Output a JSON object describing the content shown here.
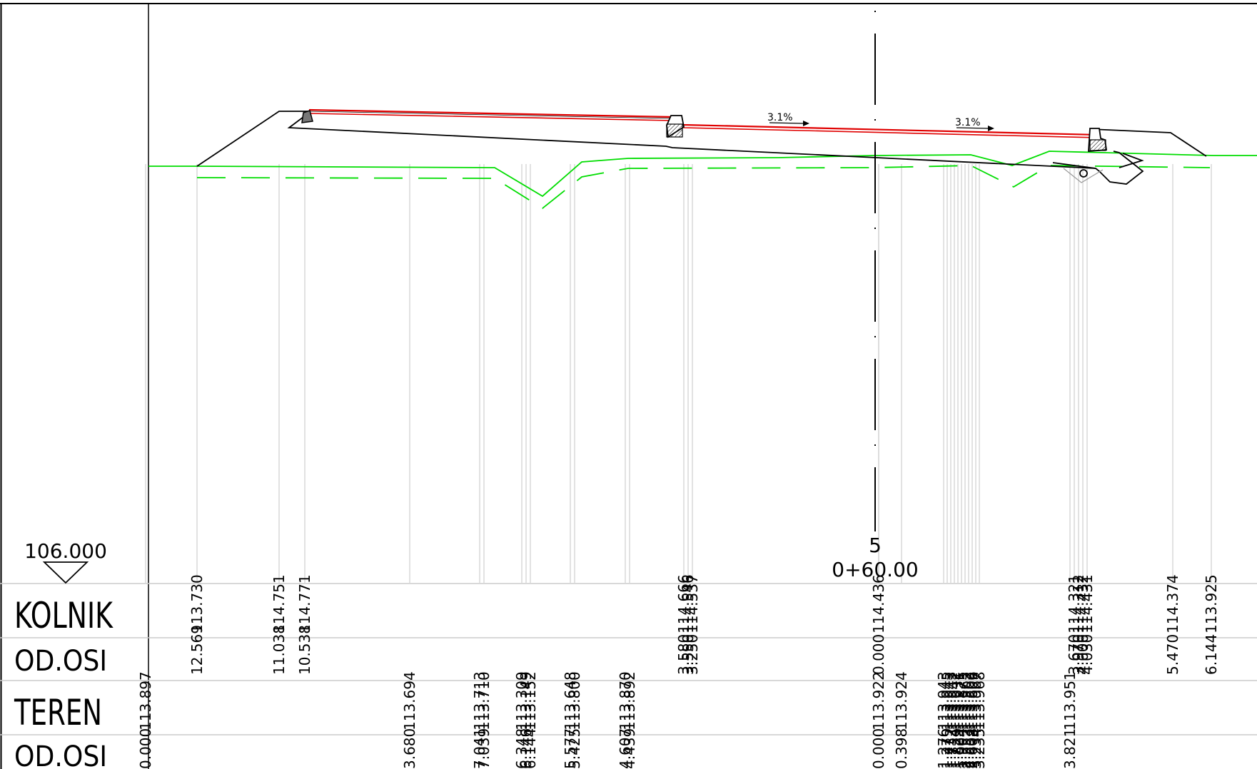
{
  "datum_label": "106.000",
  "station": {
    "number": "5",
    "chainage": "0+60.00"
  },
  "slopes": [
    "3.1%",
    "3.1%"
  ],
  "rows": [
    {
      "name": "KOLNIK"
    },
    {
      "name": "OD.OSI"
    },
    {
      "name": "TEREN"
    },
    {
      "name": "OD.OSI"
    }
  ],
  "kolnik_columns": [
    {
      "el": "113.730",
      "off": "12.569"
    },
    {
      "el": "114.751",
      "off": "11.038"
    },
    {
      "el": "114.771",
      "off": "10.538"
    },
    {
      "el": "114.666",
      "off": "3.580"
    },
    {
      "el": "114.546",
      "off": "3.550"
    },
    {
      "el": "114.537",
      "off": "3.250"
    },
    {
      "el": "114.436",
      "off": "0.000"
    },
    {
      "el": "114.321",
      "off": "3.670"
    },
    {
      "el": "114.312",
      "off": "3.970"
    },
    {
      "el": "114.432",
      "off": "4.000"
    },
    {
      "el": "114.431",
      "off": "4.030"
    },
    {
      "el": "114.374",
      "off": "5.470"
    },
    {
      "el": "113.925",
      "off": "6.144"
    }
  ],
  "teren_columns": [
    {
      "el": "113.897",
      "off": "0.000"
    },
    {
      "el": "113.694",
      "off": "3.680"
    },
    {
      "el": "113.713",
      "off": "7.041"
    },
    {
      "el": "113.710",
      "off": "7.039"
    },
    {
      "el": "113.309",
      "off": "6.348"
    },
    {
      "el": "113.149",
      "off": "6.146"
    },
    {
      "el": "113.152",
      "off": "6.144"
    },
    {
      "el": "113.648",
      "off": "5.577"
    },
    {
      "el": "113.800",
      "off": "5.425"
    },
    {
      "el": "113.870",
      "off": "4.607"
    },
    {
      "el": "113.892",
      "off": "4.439"
    },
    {
      "el": "113.922",
      "off": "0.000"
    },
    {
      "el": "113.924",
      "off": "0.398"
    },
    {
      "el": "113.943",
      "off": "1.276"
    },
    {
      "el": "113.945",
      "off": "1.279"
    },
    {
      "el": "113.943",
      "off": "1.732"
    },
    {
      "el": "113.942",
      "off": "1.734"
    },
    {
      "el": "113.931",
      "off": "1.829"
    },
    {
      "el": "113.875",
      "off": "1.904"
    },
    {
      "el": "113.565",
      "off": "2.552"
    },
    {
      "el": "113.563",
      "off": "2.553"
    },
    {
      "el": "113.606",
      "off": "2.608"
    },
    {
      "el": "113.967",
      "off": "3.234"
    },
    {
      "el": "113.968",
      "off": "3.235"
    },
    {
      "el": "113.951",
      "off": "3.821"
    }
  ]
}
